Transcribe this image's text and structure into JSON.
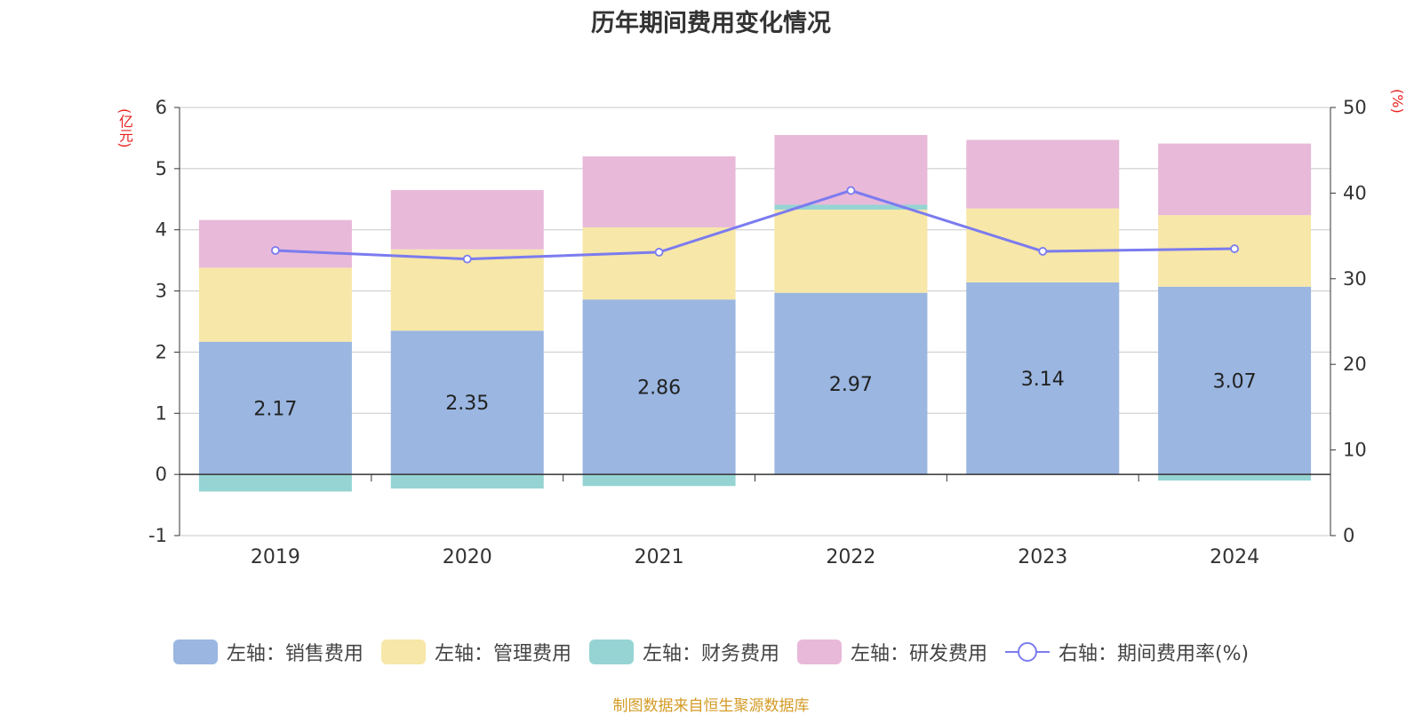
{
  "chart_data": {
    "type": "bar",
    "title": "历年期间费用变化情况",
    "left_axis_unit": "(亿元)",
    "right_axis_unit": "(%)",
    "categories": [
      "2019",
      "2020",
      "2021",
      "2022",
      "2023",
      "2024"
    ],
    "left_axis": {
      "range": [
        -1,
        6
      ],
      "ticks": [
        "-1",
        "0",
        "1",
        "2",
        "3",
        "4",
        "5",
        "6"
      ]
    },
    "right_axis": {
      "range": [
        0,
        50
      ],
      "ticks": [
        "0",
        "10",
        "20",
        "30",
        "40",
        "50"
      ]
    },
    "grid": true,
    "legend_position": "bottom",
    "series": [
      {
        "name": "左轴：销售费用",
        "type": "bar",
        "axis": "left",
        "color": "#9ab6e1",
        "values": [
          2.17,
          2.35,
          2.86,
          2.97,
          3.14,
          3.07
        ],
        "labels": [
          "2.17",
          "2.35",
          "2.86",
          "2.97",
          "3.14",
          "3.07"
        ]
      },
      {
        "name": "左轴：管理费用",
        "type": "bar",
        "axis": "left",
        "color": "#f7e7a8",
        "values": [
          1.21,
          1.33,
          1.18,
          1.36,
          1.21,
          1.17
        ]
      },
      {
        "name": "左轴：财务费用",
        "type": "bar",
        "axis": "left",
        "color": "#96d4d4",
        "values": [
          -0.28,
          -0.23,
          -0.19,
          0.08,
          0.0,
          -0.1
        ]
      },
      {
        "name": "左轴：研发费用",
        "type": "bar",
        "axis": "left",
        "color": "#e8b9d9",
        "values": [
          0.78,
          0.97,
          1.16,
          1.14,
          1.12,
          1.17
        ]
      },
      {
        "name": "右轴：期间费用率(%)",
        "type": "line",
        "axis": "right",
        "color": "#7b7bef",
        "values": [
          33.3,
          32.3,
          33.1,
          40.3,
          33.2,
          33.5
        ]
      }
    ],
    "source": "制图数据来自恒生聚源数据库"
  }
}
